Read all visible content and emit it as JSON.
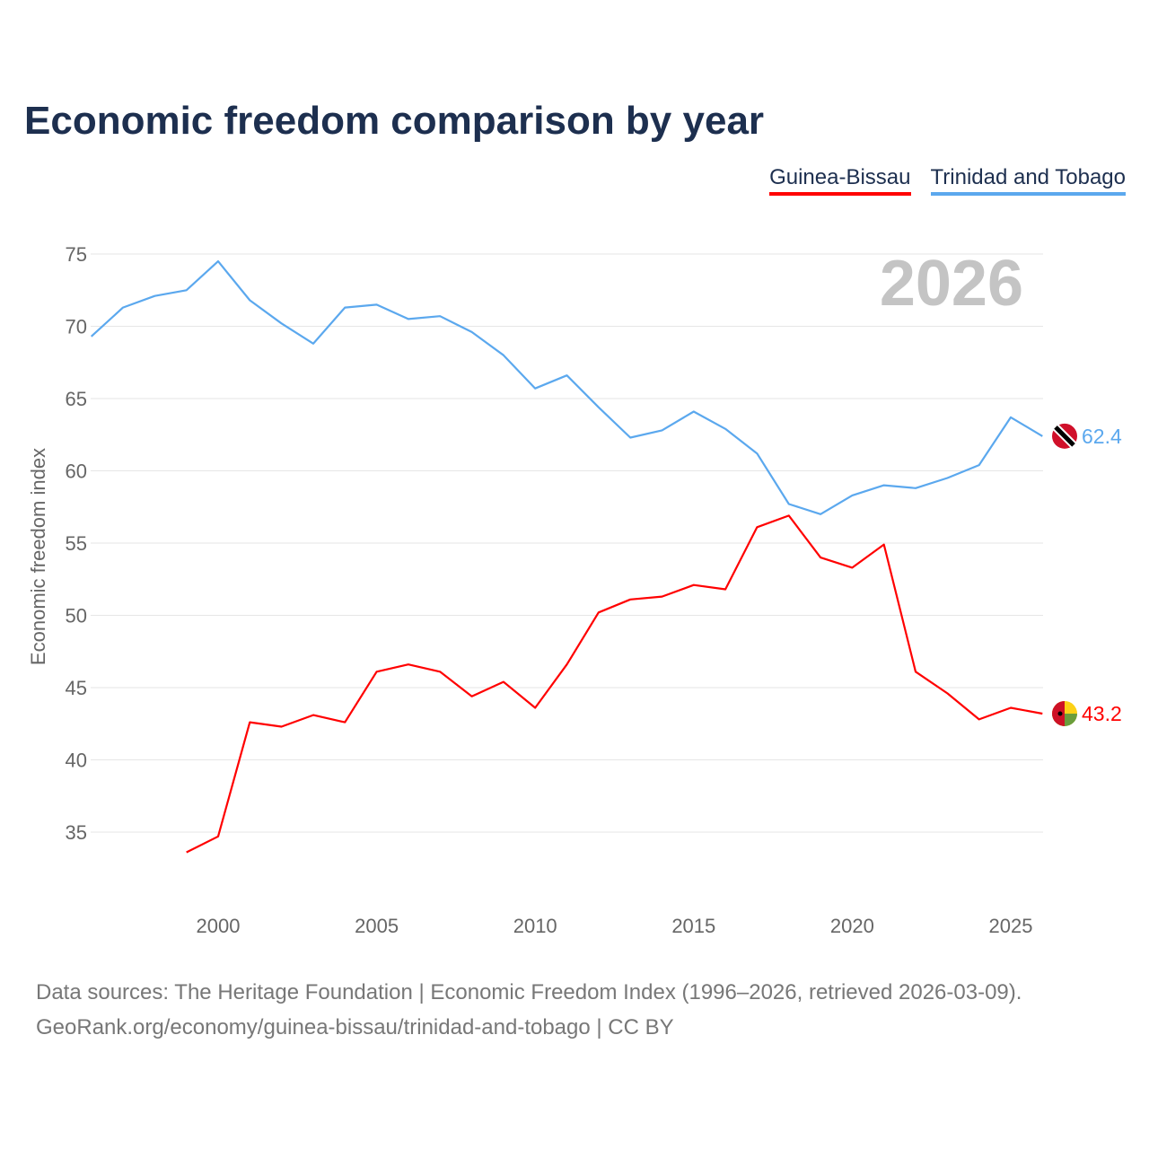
{
  "title": "Economic freedom comparison by year",
  "footer": {
    "line1": "Data sources: The Heritage Foundation | Economic Freedom Index (1996–2026, retrieved 2026-03-09).",
    "line2": "GeoRank.org/economy/guinea-bissau/trinidad-and-tobago | CC BY"
  },
  "chart_data": {
    "type": "line",
    "title": "Economic freedom comparison by year",
    "ylabel": "Economic freedom index",
    "xlabel": "",
    "year_watermark": "2026",
    "xlim": [
      1996,
      2026
    ],
    "ylim": [
      30,
      75
    ],
    "xticks": [
      2000,
      2005,
      2010,
      2015,
      2020,
      2025
    ],
    "yticks": [
      35,
      40,
      45,
      50,
      55,
      60,
      65,
      70,
      75
    ],
    "grid": true,
    "legend_position": "top-right",
    "series": [
      {
        "name": "Guinea-Bissau",
        "color": "#ff0000",
        "end_label": "43.2",
        "flag": "guinea-bissau-flag",
        "x": [
          1999,
          2000,
          2001,
          2002,
          2003,
          2004,
          2005,
          2006,
          2007,
          2008,
          2009,
          2010,
          2011,
          2012,
          2013,
          2014,
          2015,
          2016,
          2017,
          2018,
          2019,
          2020,
          2021,
          2022,
          2023,
          2024,
          2025,
          2026
        ],
        "values": [
          33.6,
          34.7,
          42.6,
          42.3,
          43.1,
          42.6,
          46.1,
          46.6,
          46.1,
          44.4,
          45.4,
          43.6,
          46.6,
          50.2,
          51.1,
          51.3,
          52.1,
          51.8,
          56.1,
          56.9,
          54.0,
          53.3,
          54.9,
          46.1,
          44.6,
          42.8,
          43.6,
          43.2
        ]
      },
      {
        "name": "Trinidad and Tobago",
        "color": "#5ba8ee",
        "end_label": "62.4",
        "flag": "trinidad-and-tobago-flag",
        "x": [
          1996,
          1997,
          1998,
          1999,
          2000,
          2001,
          2002,
          2003,
          2004,
          2005,
          2006,
          2007,
          2008,
          2009,
          2010,
          2011,
          2012,
          2013,
          2014,
          2015,
          2016,
          2017,
          2018,
          2019,
          2020,
          2021,
          2022,
          2023,
          2024,
          2025,
          2026
        ],
        "values": [
          69.3,
          71.3,
          72.1,
          72.5,
          74.5,
          71.8,
          70.2,
          68.8,
          71.3,
          71.5,
          70.5,
          70.7,
          69.6,
          68.0,
          65.7,
          66.6,
          64.4,
          62.3,
          62.8,
          64.1,
          62.9,
          61.2,
          57.7,
          57.0,
          58.3,
          59.0,
          58.8,
          59.5,
          60.4,
          63.7,
          62.4
        ]
      }
    ]
  }
}
